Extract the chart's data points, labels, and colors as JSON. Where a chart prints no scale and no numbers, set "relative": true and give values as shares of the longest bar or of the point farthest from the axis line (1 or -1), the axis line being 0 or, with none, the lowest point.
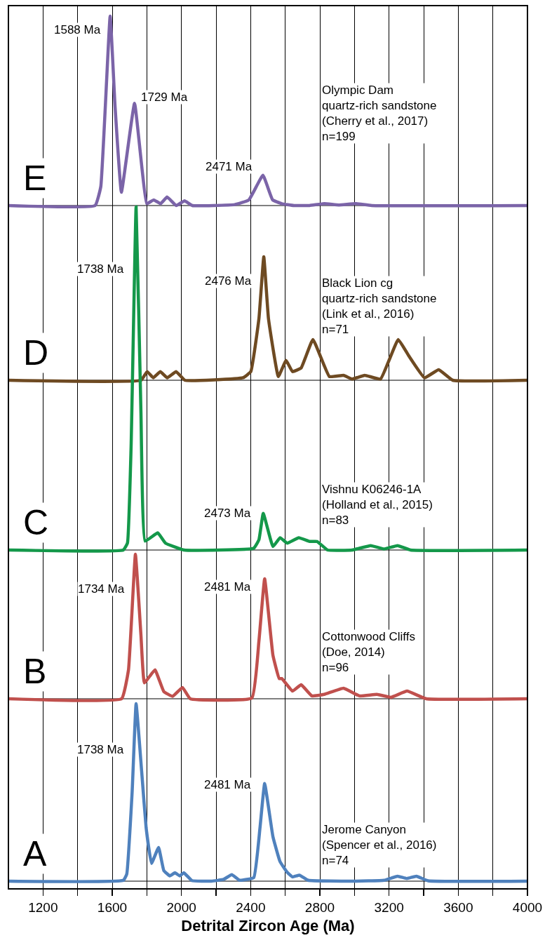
{
  "chart_data": [
    {
      "type": "line",
      "relative": true,
      "xlim": [
        1000,
        4000
      ],
      "tick_labels": false,
      "series": [
        {
          "color": "#7b64a8",
          "x": [
            1000,
            1501,
            1534,
            1588,
            1616,
            1653,
            1729,
            1800,
            1840,
            1880,
            1917,
            1970,
            2018,
            2063,
            2308,
            2390,
            2471,
            2527,
            2580,
            2650,
            2740,
            2825,
            2910,
            3008,
            3100,
            4000
          ],
          "values": [
            0,
            0,
            0.1,
            1,
            0.53,
            0.07,
            0.54,
            0.01,
            0.03,
            0.01,
            0.045,
            0,
            0.025,
            0,
            0.005,
            0.03,
            0.16,
            0.03,
            0.01,
            0,
            0,
            0.01,
            0.003,
            0.01,
            0,
            0
          ]
        }
      ],
      "annotations": [
        "E",
        "Olympic Dam\nquartz-rich sandstone\n(Cherry et al., 2017)\nn=199",
        {
          "text": "1588 Ma",
          "x": 1588,
          "y": 1
        },
        {
          "text": "1729 Ma",
          "x": 1729,
          "y": 0.54
        },
        {
          "text": "2471 Ma",
          "x": 2471,
          "y": 0.16
        }
      ]
    },
    {
      "type": "line",
      "relative": true,
      "xlim": [
        1000,
        4000
      ],
      "tick_labels": false,
      "series": [
        {
          "color": "#6e4a22",
          "x": [
            1000,
            1766,
            1802,
            1837,
            1878,
            1918,
            1969,
            2020,
            2356,
            2401,
            2448,
            2476,
            2503,
            2560,
            2605,
            2642,
            2692,
            2760,
            2855,
            2937,
            2987,
            3059,
            3151,
            3253,
            3313,
            3405,
            3487,
            3568,
            4000
          ],
          "values": [
            0,
            0,
            0.07,
            0.02,
            0.07,
            0.02,
            0.07,
            0,
            0.02,
            0.07,
            0.5,
            1,
            0.5,
            0.03,
            0.16,
            0.07,
            0.1,
            0.33,
            0.03,
            0.04,
            0.01,
            0.04,
            0.01,
            0.33,
            0.2,
            0.02,
            0.085,
            0,
            0
          ]
        }
      ],
      "annotations": [
        "D",
        "Black Lion cg\nquartz-rich sandstone\n(Link et al., 2016)\nn=71",
        {
          "text": "2476 Ma",
          "x": 2476,
          "y": 1
        }
      ]
    },
    {
      "type": "line",
      "relative": true,
      "xlim": [
        1000,
        4000
      ],
      "tick_labels": false,
      "series": [
        {
          "color": "#14984a",
          "x": [
            1000,
            1664,
            1688,
            1709,
            1738,
            1766,
            1790,
            1863,
            1908,
            2015,
            2418,
            2448,
            2473,
            2529,
            2570,
            2611,
            2678,
            2743,
            2784,
            2845,
            2987,
            3094,
            3171,
            3249,
            3324,
            4000
          ],
          "values": [
            0,
            0,
            0.02,
            0.3,
            1,
            0.4,
            0.026,
            0.05,
            0.02,
            0,
            0.005,
            0.03,
            0.107,
            0.01,
            0.036,
            0.02,
            0.036,
            0.025,
            0.025,
            0,
            0,
            0.013,
            0.003,
            0.013,
            0,
            0
          ]
        }
      ],
      "annotations": [
        "C",
        "Vishnu K06246-1A\n(Holland et al., 2015)\nn=83",
        {
          "text": "1738 Ma",
          "x": 1738,
          "y": 0.82
        },
        {
          "text": "2473 Ma",
          "x": 2473,
          "y": 0.107
        }
      ]
    },
    {
      "type": "line",
      "relative": true,
      "xlim": [
        1000,
        4000
      ],
      "tick_labels": false,
      "series": [
        {
          "color": "#c0504d",
          "x": [
            1000,
            1654,
            1694,
            1734,
            1766,
            1786,
            1847,
            1898,
            1949,
            2006,
            2051,
            2407,
            2448,
            2481,
            2529,
            2565,
            2580,
            2642,
            2692,
            2754,
            2825,
            2937,
            3029,
            3130,
            3212,
            3304,
            3415,
            4000
          ],
          "values": [
            0,
            0,
            0.2,
            1,
            0.44,
            0.11,
            0.2,
            0.05,
            0.017,
            0.078,
            0,
            0.005,
            0.4,
            0.83,
            0.3,
            0.14,
            0.14,
            0.053,
            0.097,
            0.02,
            0.03,
            0.073,
            0.02,
            0.03,
            0.01,
            0.053,
            0,
            0
          ]
        }
      ],
      "annotations": [
        "B",
        "Cottonwood Cliffs\n(Doe, 2014)\nn=96",
        {
          "text": "1734 Ma",
          "x": 1734,
          "y": 0.76
        },
        {
          "text": "2481 Ma",
          "x": 2481,
          "y": 0.83
        }
      ]
    },
    {
      "type": "line",
      "relative": true,
      "xlim": [
        1000,
        4000
      ],
      "tick_labels": "x",
      "grid": "x",
      "xlabel": "Detrital Zircon Age (Ma)",
      "xticks": [
        1200,
        {
          "value": 1400,
          "label": null
        },
        1600,
        {
          "value": 1800,
          "label": null
        },
        2000,
        {
          "value": 2200,
          "label": null
        },
        2400,
        {
          "value": 2600,
          "label": null
        },
        2800,
        {
          "value": 3000,
          "label": null
        },
        3200,
        {
          "value": 3400,
          "label": null
        },
        3600,
        {
          "value": 3800,
          "label": null
        },
        4000
      ],
      "series": [
        {
          "color": "#4f81bd",
          "x": [
            1000,
            1665,
            1684,
            1715,
            1738,
            1770,
            1796,
            1827,
            1868,
            1898,
            1933,
            1963,
            1990,
            2014,
            2061,
            2173,
            2244,
            2291,
            2336,
            2418,
            2454,
            2481,
            2529,
            2570,
            2611,
            2642,
            2682,
            2733,
            2988,
            3171,
            3249,
            3303,
            3358,
            3426,
            4000
          ],
          "values": [
            0,
            0.005,
            0.04,
            0.5,
            1,
            0.62,
            0.3,
            0.1,
            0.19,
            0.06,
            0.03,
            0.047,
            0.03,
            0.047,
            0.003,
            0,
            0.01,
            0.037,
            0.005,
            0.02,
            0.3,
            0.55,
            0.25,
            0.11,
            0.05,
            0.024,
            0.034,
            0.005,
            0,
            0.005,
            0.028,
            0.015,
            0.028,
            0.002,
            0
          ]
        }
      ],
      "annotations": [
        "A",
        "Jerome Canyon\n(Spencer et al., 2016)\nn=74",
        {
          "text": "1738 Ma",
          "x": 1738,
          "y": 0.74
        },
        {
          "text": "2481 Ma",
          "x": 2481,
          "y": 0.55
        }
      ]
    }
  ]
}
